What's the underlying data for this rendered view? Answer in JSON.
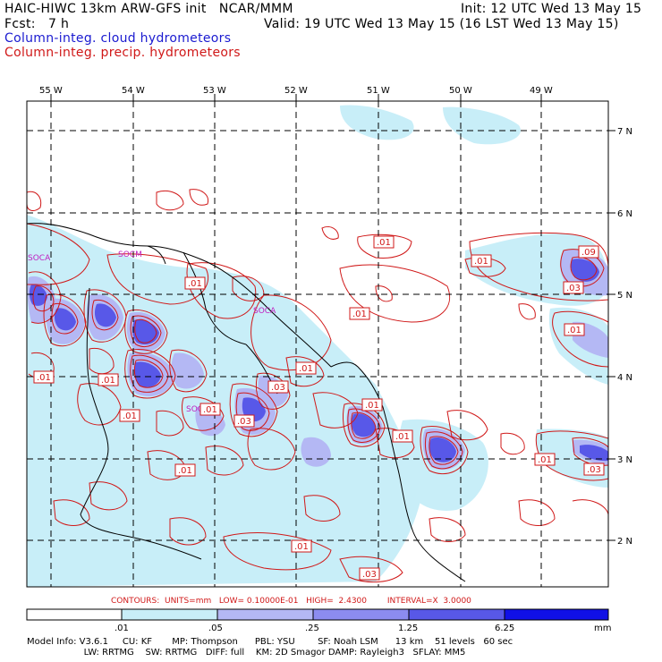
{
  "header": {
    "line1_left": "HAIC-HIWC 13km ARW-GFS init   NCAR/MMM",
    "line1_right": "Init: 12 UTC Wed 13 May 15",
    "line2_left": "Fcst:   7 h",
    "line2_right": "Valid: 19 UTC Wed 13 May 15 (16 LST Wed 13 May 15)",
    "field1": "Column-integ. cloud hydrometeors",
    "field2": "Column-integ. precip. hydrometeors"
  },
  "colors": {
    "cloud_text": "#1a1ad0",
    "precip_text": "#d01818",
    "fill_1": "#c8eef8",
    "fill_2": "#b4b8f4",
    "fill_3": "#8c8cf0",
    "fill_4": "#5858e8",
    "fill_5": "#2a2ae0",
    "fill_6": "#1010e6",
    "contour": "#d01818",
    "station": "#c020c0"
  },
  "axes": {
    "lon_labels": [
      "55 W",
      "54 W",
      "53 W",
      "52 W",
      "51 W",
      "50 W",
      "49 W"
    ],
    "lat_labels": [
      "7 N",
      "6 N",
      "5 N",
      "4 N",
      "3 N",
      "2 N"
    ]
  },
  "stations": [
    "SOCA",
    "SOCM",
    "SOCA",
    "SOOA"
  ],
  "contour_labels": [
    ".01",
    ".01",
    ".09",
    ".01",
    ".01",
    ".03",
    ".01",
    ".01",
    ".01",
    ".01",
    ".03",
    ".01",
    ".03",
    ".01",
    ".01",
    ".01",
    ".01",
    ".03",
    ".01",
    ".01",
    ".03"
  ],
  "contours_line": "CONTOURS:  UNITS=mm   LOW= 0.10000E-01   HIGH=  2.4300        INTERVAL=X  3.0000",
  "legend": {
    "ticks": [
      ".01",
      ".05",
      ".25",
      "1.25",
      "6.25"
    ],
    "units": "mm"
  },
  "footer": {
    "line1": "Model Info: V3.6.1     CU: KF       MP: Thompson      PBL: YSU        SF: Noah LSM      13 km    51 levels   60 sec",
    "line2": "                    LW: RRTMG    SW: RRTMG   DIFF: full    KM: 2D Smagor DAMP: Rayleigh3   SFLAY: MM5"
  }
}
